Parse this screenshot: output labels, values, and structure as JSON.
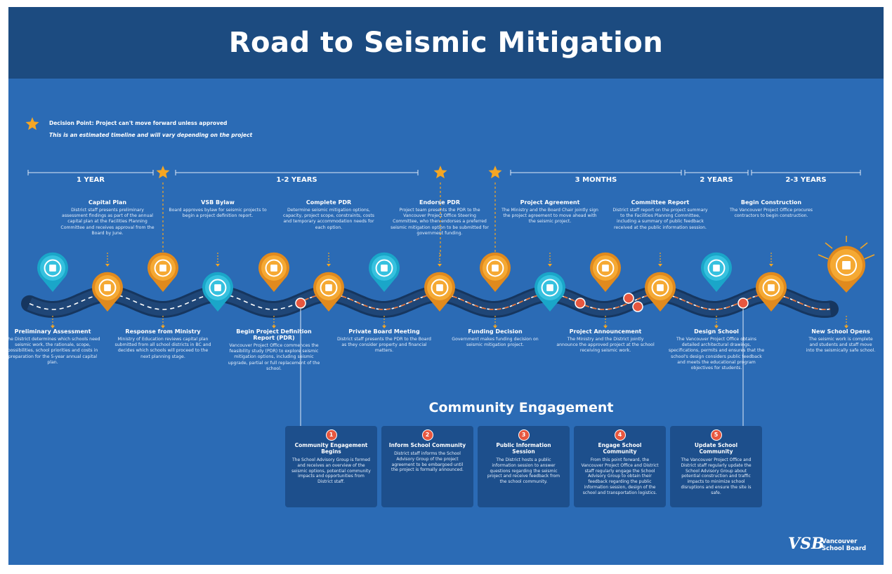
{
  "header": {
    "title": "Road to Seismic Mitigation"
  },
  "legend": {
    "decision": "Decision Point: Project can't move forward unless approved",
    "note": "This is an estimated timeline and will vary depending on the project"
  },
  "periods": [
    "1 YEAR",
    "1-2 YEARS",
    "3 MONTHS",
    "2 YEARS",
    "2-3 YEARS"
  ],
  "events": [
    {
      "title": "Preliminary Assessment",
      "description": "The District determines which schools need seismic work, the rationale, scope, possibilities, school priorities and costs in preparation for the 5-year annual capital plan."
    },
    {
      "title": "Capital Plan",
      "description": "District staff presents preliminary assessment findings as part of the annual capital plan at the Facilities Planning Committee and receives approval from the Board by June."
    },
    {
      "title": "Response from Ministry",
      "description": "Ministry of Education reviews capital plan submitted from all school districts in BC and decides which schools will proceed to the next planning stage."
    },
    {
      "title": "VSB Bylaw",
      "description": "Board approves bylaw for seismic projects to begin a project definition report."
    },
    {
      "title": "Begin Project Definition Report (PDR)",
      "description": "Vancouver Project Office commences the feasibility study (PDR) to explore seismic mitigation options, including seismic upgrade, partial or full replacement of the school."
    },
    {
      "title": "Complete PDR",
      "description": "Determine seismic mitigation options, capacity, project scope, constraints, costs and temporary accommodation needs for each option."
    },
    {
      "title": "Private Board Meeting",
      "description": "District staff presents the PDR to the Board as they consider property and financial matters."
    },
    {
      "title": "Endorse PDR",
      "description": "Project team presents the PDR to the Vancouver Project Office Steering Committee, who then endorses a preferred seismic mitigation option to be submitted for government funding."
    },
    {
      "title": "Funding Decision",
      "description": "Government makes funding decision on seismic mitigation project."
    },
    {
      "title": "Project Agreement",
      "description": "The Ministry and the Board Chair jointly sign the project agreement to move ahead with the seismic project."
    },
    {
      "title": "Project Announcement",
      "description": "The Ministry and the District jointly announce the approved project at the school receiving seismic work."
    },
    {
      "title": "Committee Report",
      "description": "District staff report on the project summary to the Facilities Planning Committee, including a summary of public feedback received at the public information session."
    },
    {
      "title": "Design School",
      "description": "The Vancouver Project Office obtains detailed architectural drawings, specifications, permits and ensures that the school's design considers public feedback and meets the educational program objectives for students."
    },
    {
      "title": "Begin Construction",
      "description": "The Vancouver Project Office procures contractors to begin construction."
    },
    {
      "title": "New School Opens",
      "description": "The seismic work is complete and students and staff move into the seismically safe school."
    }
  ],
  "engagement": {
    "title": "Community Engagement",
    "cards": [
      {
        "number": "1",
        "title": "Community Engagement Begins",
        "description": "The School Advisory Group is formed and receives an overview of the seismic options, potential community impacts and opportunities from District staff."
      },
      {
        "number": "2",
        "title": "Inform School Community",
        "description": "District staff informs the School Advisory Group of the project agreement to be embargoed until the project is formally announced."
      },
      {
        "number": "3",
        "title": "Public Information Session",
        "description": "The District hosts a public information session to answer questions regarding the seismic project and receive feedback from the school community."
      },
      {
        "number": "4",
        "title": "Engage School Community",
        "description": "From this point forward, the Vancouver Project Office and District staff regularly engage the School Advisory Group to obtain their feedback regarding the public information session, design of the school and transportation logistics."
      },
      {
        "number": "5",
        "title": "Update School Community",
        "description": "The Vancouver Project Office and District staff regularly update the School Advisory Group about potential construction and traffic impacts to minimize school disruptions and ensure the site is safe."
      }
    ]
  },
  "logo": {
    "mark": "VSB",
    "name": "Vancouver School Board"
  }
}
